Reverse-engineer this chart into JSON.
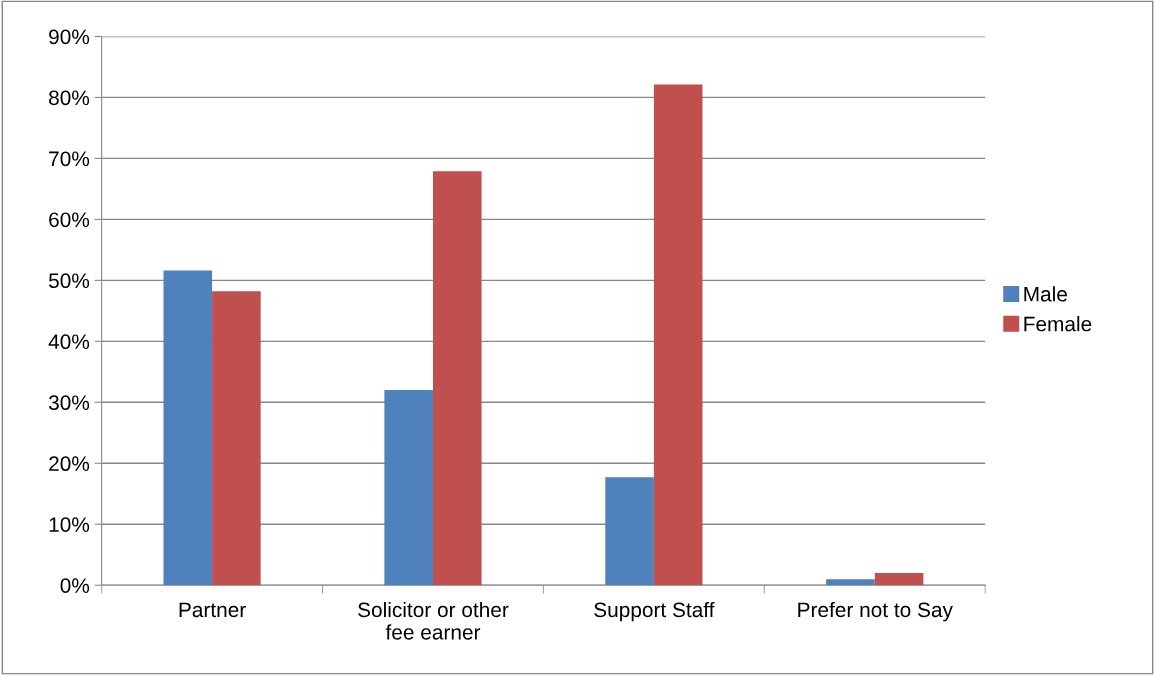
{
  "chart_data": {
    "type": "bar",
    "categories": [
      "Partner",
      "Solicitor or other\nfee earner",
      "Support Staff",
      "Prefer not to Say"
    ],
    "series": [
      {
        "name": "Male",
        "color": "#4f81bd",
        "values": [
          51.6,
          32.0,
          17.7,
          1.0
        ]
      },
      {
        "name": "Female",
        "color": "#c0504d",
        "values": [
          48.2,
          67.9,
          82.1,
          2.0
        ]
      }
    ],
    "ylim": [
      0,
      90
    ],
    "yticks": [
      {
        "value": 0,
        "label": "0%"
      },
      {
        "value": 10,
        "label": "10%"
      },
      {
        "value": 20,
        "label": "20%"
      },
      {
        "value": 30,
        "label": "30%"
      },
      {
        "value": 40,
        "label": "40%"
      },
      {
        "value": 50,
        "label": "50%"
      },
      {
        "value": 60,
        "label": "60%"
      },
      {
        "value": 70,
        "label": "70%"
      },
      {
        "value": 80,
        "label": "80%"
      },
      {
        "value": 90,
        "label": "90%"
      }
    ],
    "grid": "y",
    "legend": "right"
  }
}
